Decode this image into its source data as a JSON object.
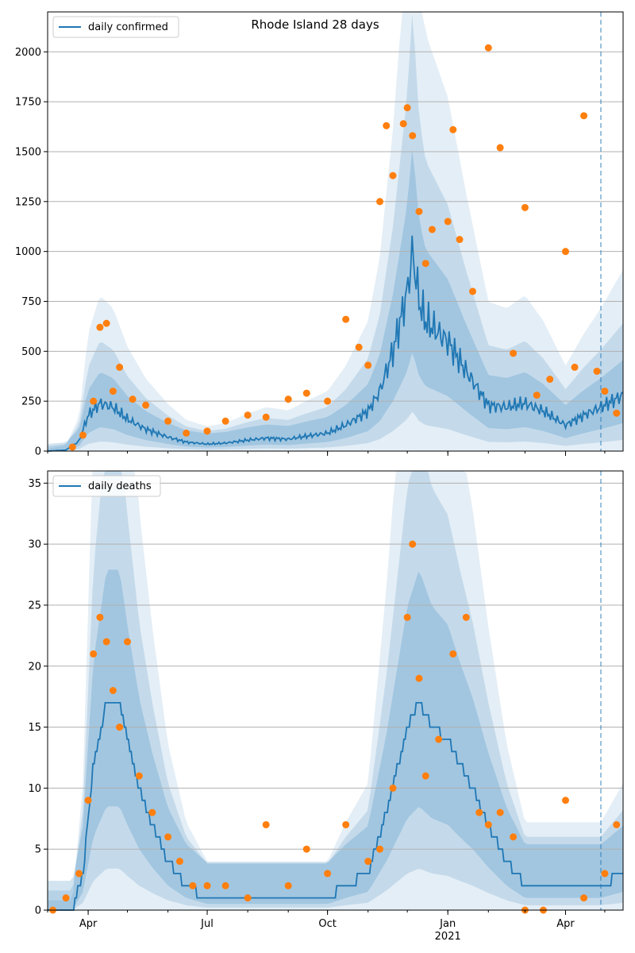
{
  "chart_data": [
    {
      "type": "line",
      "title": "Rhode Island 28 days",
      "legend": {
        "position": "top-left",
        "entries": [
          "daily confirmed"
        ]
      },
      "grid": "horizontal",
      "x_range": [
        "2020-03-01",
        "2021-05-15"
      ],
      "ylim": [
        0,
        2200
      ],
      "y_ticks": [
        0,
        250,
        500,
        750,
        1000,
        1250,
        1500,
        1750,
        2000
      ],
      "x_ticks": [
        {
          "date": "2020-04-01",
          "label": "Apr",
          "sublabel": ""
        },
        {
          "date": "2020-07-01",
          "label": "Jul",
          "sublabel": ""
        },
        {
          "date": "2020-10-01",
          "label": "Oct",
          "sublabel": ""
        },
        {
          "date": "2021-01-01",
          "label": "Jan",
          "sublabel": "2021"
        },
        {
          "date": "2021-04-01",
          "label": "Apr",
          "sublabel": ""
        }
      ],
      "forecast_start": "2021-04-28",
      "series": [
        {
          "name": "daily confirmed",
          "kind": "line",
          "color": "#1f77b4",
          "x": [
            "2020-03-01",
            "2020-03-15",
            "2020-03-25",
            "2020-04-01",
            "2020-04-10",
            "2020-04-20",
            "2020-05-01",
            "2020-05-15",
            "2020-06-01",
            "2020-06-15",
            "2020-07-01",
            "2020-07-15",
            "2020-08-01",
            "2020-08-15",
            "2020-09-01",
            "2020-09-15",
            "2020-10-01",
            "2020-10-15",
            "2020-11-01",
            "2020-11-10",
            "2020-11-20",
            "2020-12-01",
            "2020-12-05",
            "2020-12-10",
            "2020-12-15",
            "2021-01-01",
            "2021-01-15",
            "2021-02-01",
            "2021-02-15",
            "2021-03-01",
            "2021-03-15",
            "2021-04-01",
            "2021-04-15",
            "2021-04-28",
            "2021-05-15"
          ],
          "y": [
            0,
            5,
            50,
            180,
            240,
            220,
            160,
            110,
            70,
            45,
            35,
            40,
            55,
            65,
            60,
            75,
            90,
            130,
            200,
            300,
            500,
            800,
            1000,
            750,
            650,
            550,
            400,
            230,
            220,
            240,
            200,
            130,
            180,
            220,
            280
          ]
        },
        {
          "name": "observed",
          "kind": "scatter",
          "color": "#ff7f0e",
          "x": [
            "2020-03-20",
            "2020-03-28",
            "2020-04-05",
            "2020-04-10",
            "2020-04-15",
            "2020-04-20",
            "2020-04-25",
            "2020-05-05",
            "2020-05-15",
            "2020-06-01",
            "2020-06-15",
            "2020-07-01",
            "2020-07-15",
            "2020-08-01",
            "2020-08-15",
            "2020-09-01",
            "2020-09-15",
            "2020-10-01",
            "2020-10-15",
            "2020-10-25",
            "2020-11-01",
            "2020-11-10",
            "2020-11-15",
            "2020-11-20",
            "2020-11-28",
            "2020-12-01",
            "2020-12-05",
            "2020-12-10",
            "2020-12-15",
            "2020-12-20",
            "2021-01-01",
            "2021-01-05",
            "2021-01-10",
            "2021-01-20",
            "2021-02-01",
            "2021-02-10",
            "2021-02-20",
            "2021-03-01",
            "2021-03-10",
            "2021-03-20",
            "2021-04-01",
            "2021-04-08",
            "2021-04-15",
            "2021-04-25",
            "2021-05-01",
            "2021-05-10"
          ],
          "y": [
            20,
            80,
            250,
            620,
            640,
            300,
            420,
            260,
            230,
            150,
            90,
            100,
            150,
            180,
            170,
            260,
            290,
            250,
            660,
            520,
            430,
            1250,
            1630,
            1380,
            1640,
            1720,
            1580,
            1200,
            940,
            1110,
            1150,
            1610,
            1060,
            800,
            2020,
            1520,
            490,
            1220,
            280,
            360,
            1000,
            420,
            1680,
            400,
            300,
            190
          ]
        }
      ]
    },
    {
      "type": "line",
      "title": "",
      "legend": {
        "position": "top-left",
        "entries": [
          "daily deaths"
        ]
      },
      "grid": "horizontal",
      "x_range": [
        "2020-03-01",
        "2021-05-15"
      ],
      "ylim": [
        0,
        36
      ],
      "y_ticks": [
        0,
        5,
        10,
        15,
        20,
        25,
        30,
        35
      ],
      "x_ticks": [
        {
          "date": "2020-04-01",
          "label": "Apr",
          "sublabel": ""
        },
        {
          "date": "2020-07-01",
          "label": "Jul",
          "sublabel": ""
        },
        {
          "date": "2020-10-01",
          "label": "Oct",
          "sublabel": ""
        },
        {
          "date": "2021-01-01",
          "label": "Jan",
          "sublabel": "2021"
        },
        {
          "date": "2021-04-01",
          "label": "Apr",
          "sublabel": ""
        }
      ],
      "forecast_start": "2021-04-28",
      "series": [
        {
          "name": "daily deaths",
          "kind": "line",
          "color": "#1f77b4",
          "x": [
            "2020-03-01",
            "2020-03-20",
            "2020-03-28",
            "2020-04-05",
            "2020-04-15",
            "2020-04-25",
            "2020-05-01",
            "2020-05-10",
            "2020-05-20",
            "2020-06-01",
            "2020-06-15",
            "2020-07-01",
            "2020-07-15",
            "2020-08-01",
            "2020-09-01",
            "2020-10-01",
            "2020-10-15",
            "2020-11-01",
            "2020-11-15",
            "2020-12-01",
            "2020-12-10",
            "2020-12-20",
            "2021-01-01",
            "2021-01-10",
            "2021-01-20",
            "2021-02-01",
            "2021-02-15",
            "2021-03-01",
            "2021-03-15",
            "2021-04-01",
            "2021-04-15",
            "2021-04-28",
            "2021-05-15"
          ],
          "y": [
            0,
            0,
            3,
            12,
            17,
            17,
            14,
            10,
            7,
            4,
            2,
            1,
            1,
            1,
            1,
            1,
            2,
            3,
            8,
            15,
            17,
            15,
            14,
            12,
            10,
            7,
            4,
            2,
            2,
            2,
            2,
            2,
            3
          ]
        },
        {
          "name": "observed",
          "kind": "scatter",
          "color": "#ff7f0e",
          "x": [
            "2020-03-05",
            "2020-03-15",
            "2020-03-25",
            "2020-04-01",
            "2020-04-05",
            "2020-04-10",
            "2020-04-15",
            "2020-04-20",
            "2020-04-25",
            "2020-05-01",
            "2020-05-10",
            "2020-05-20",
            "2020-06-01",
            "2020-06-10",
            "2020-06-20",
            "2020-07-01",
            "2020-07-15",
            "2020-08-01",
            "2020-08-15",
            "2020-09-01",
            "2020-09-15",
            "2020-10-01",
            "2020-10-15",
            "2020-11-01",
            "2020-11-10",
            "2020-11-20",
            "2020-12-01",
            "2020-12-05",
            "2020-12-10",
            "2020-12-15",
            "2020-12-25",
            "2021-01-05",
            "2021-01-15",
            "2021-01-25",
            "2021-02-01",
            "2021-02-10",
            "2021-02-20",
            "2021-03-01",
            "2021-03-15",
            "2021-04-01",
            "2021-04-15",
            "2021-05-01",
            "2021-05-10"
          ],
          "y": [
            0,
            1,
            3,
            9,
            21,
            24,
            22,
            18,
            15,
            22,
            11,
            8,
            6,
            4,
            2,
            2,
            2,
            1,
            7,
            2,
            5,
            3,
            7,
            4,
            5,
            10,
            24,
            30,
            19,
            11,
            14,
            21,
            24,
            8,
            7,
            8,
            6,
            0,
            0,
            9,
            1,
            3,
            7
          ]
        }
      ]
    }
  ]
}
